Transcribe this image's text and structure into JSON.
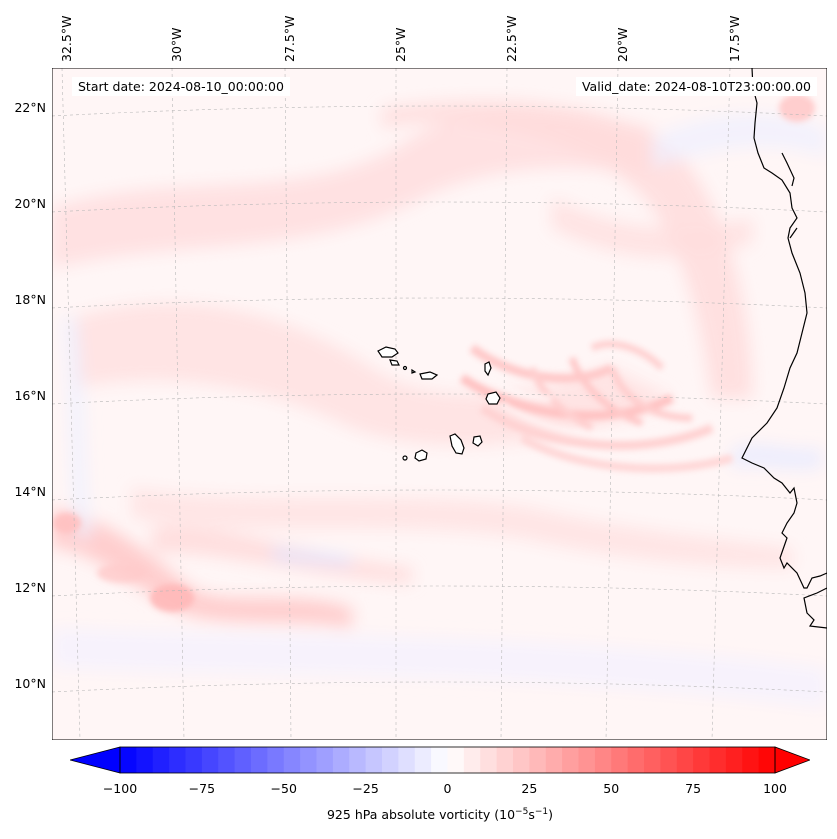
{
  "titles": {
    "start_date": "Start date: 2024-08-10_00:00:00",
    "valid_date": "Valid_date: 2024-08-10T23:00:00.00"
  },
  "axes": {
    "lon_labels": [
      "32.5°W",
      "30°W",
      "27.5°W",
      "25°W",
      "22.5°W",
      "20°W",
      "17.5°W"
    ],
    "lat_labels": [
      "22°N",
      "20°N",
      "18°N",
      "16°N",
      "14°N",
      "12°N",
      "10°N"
    ]
  },
  "colorbar": {
    "variable": "925 hPa absolute vorticity",
    "units_base": "10",
    "units_exp": "−5",
    "units_tail": "s",
    "units_tail_exp": "−1",
    "ticks": [
      "−100",
      "−75",
      "−50",
      "−25",
      "0",
      "25",
      "50",
      "75",
      "100"
    ],
    "min": -100,
    "max": 100,
    "colors": {
      "neg": "#0000ff",
      "zero": "#ffffff",
      "pos": "#ff0000"
    }
  },
  "map": {
    "extent": {
      "lon": [
        -32.5,
        -15.5
      ],
      "lat": [
        9,
        22.5
      ]
    },
    "coast_color": "#000000",
    "grid": true,
    "projection": "lambert-conformal"
  }
}
